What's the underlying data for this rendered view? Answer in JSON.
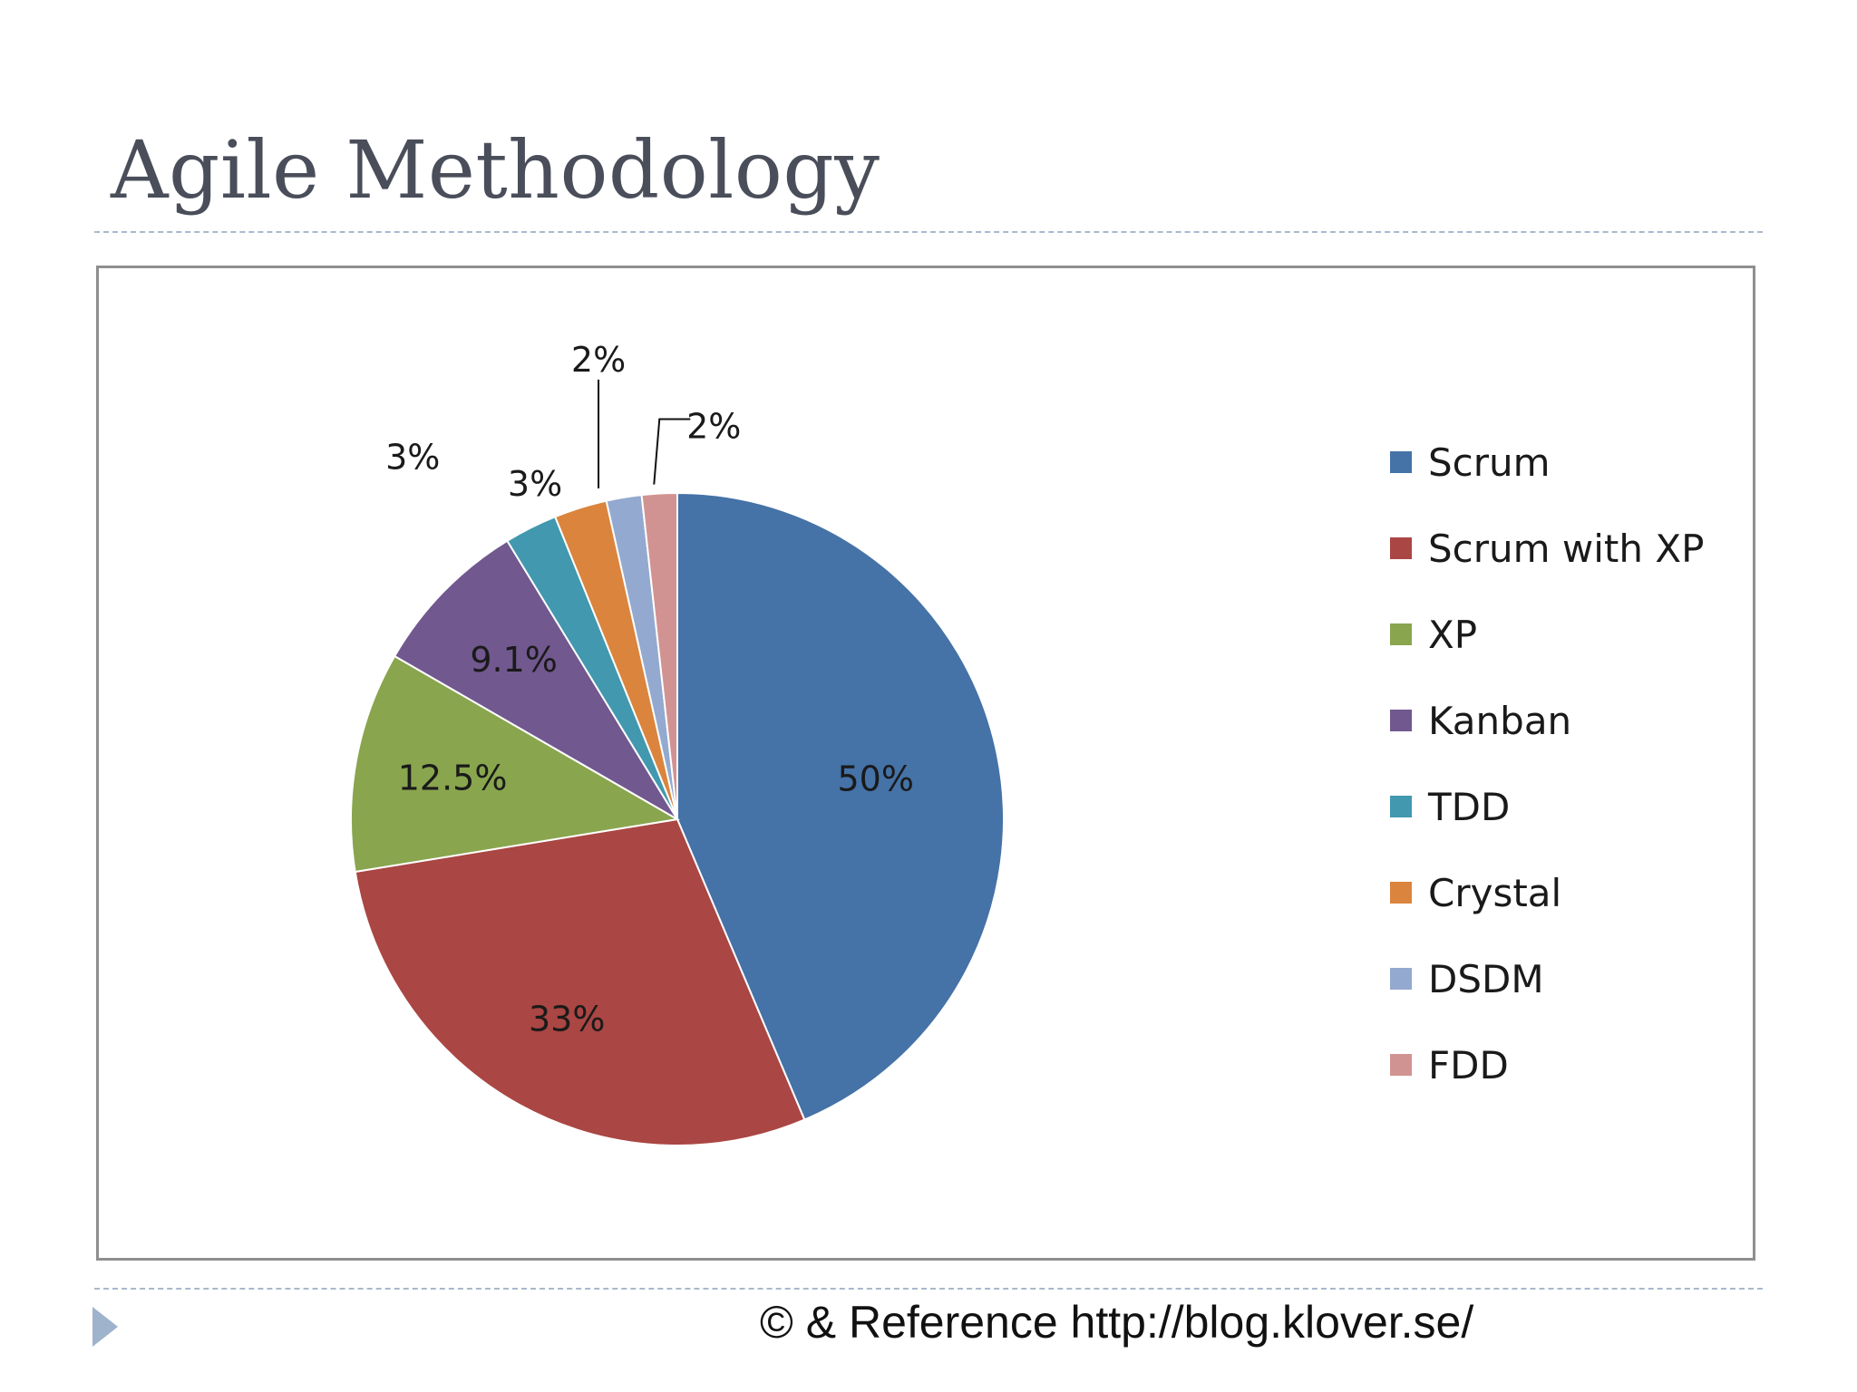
{
  "slide": {
    "title": "Agile Methodology",
    "footer": "© & Reference http://blog.klover.se/"
  },
  "chart_data": {
    "type": "pie",
    "title": "",
    "legend_position": "right",
    "start_angle_deg": 0,
    "direction": "clockwise",
    "slices": [
      {
        "label": "Scrum",
        "value": 50,
        "data_label": "50%",
        "color": "#4572a7"
      },
      {
        "label": "Scrum with XP",
        "value": 33,
        "data_label": "33%",
        "color": "#aa4643"
      },
      {
        "label": "XP",
        "value": 12.5,
        "data_label": "12.5%",
        "color": "#89a54e"
      },
      {
        "label": "Kanban",
        "value": 9.1,
        "data_label": "9.1%",
        "color": "#71588f"
      },
      {
        "label": "TDD",
        "value": 3,
        "data_label": "3%",
        "color": "#4198af"
      },
      {
        "label": "Crystal",
        "value": 3,
        "data_label": "3%",
        "color": "#db843d"
      },
      {
        "label": "DSDM",
        "value": 2,
        "data_label": "2%",
        "color": "#93a9cf"
      },
      {
        "label": "FDD",
        "value": 2,
        "data_label": "2%",
        "color": "#d19392"
      }
    ]
  }
}
